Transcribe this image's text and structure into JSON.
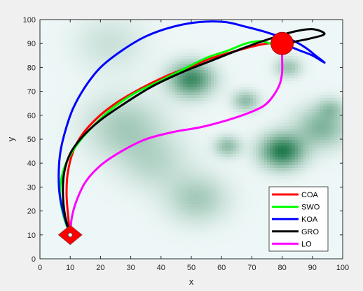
{
  "chart_data": {
    "type": "line",
    "title": "",
    "xlabel": "x",
    "ylabel": "y",
    "xlim": [
      0,
      100
    ],
    "ylim": [
      0,
      100
    ],
    "xticks": [
      "0",
      "10",
      "20",
      "30",
      "40",
      "50",
      "60",
      "70",
      "80",
      "90",
      "100"
    ],
    "yticks": [
      "0",
      "10",
      "20",
      "30",
      "40",
      "50",
      "60",
      "70",
      "80",
      "90",
      "100"
    ],
    "legend_position": "lower-right",
    "grid": false,
    "background": {
      "description_colors": [
        "#eef7f7",
        "#006633"
      ],
      "peaks": [
        {
          "x": 50,
          "y": 75,
          "strength": 0.75,
          "spread": 5
        },
        {
          "x": 80,
          "y": 45,
          "strength": 0.85,
          "spread": 5
        },
        {
          "x": 68,
          "y": 66,
          "strength": 0.4,
          "spread": 3
        },
        {
          "x": 62,
          "y": 47,
          "strength": 0.4,
          "spread": 3
        },
        {
          "x": 82,
          "y": 80,
          "strength": 0.35,
          "spread": 3
        },
        {
          "x": 93,
          "y": 55,
          "strength": 0.45,
          "spread": 6
        },
        {
          "x": 96,
          "y": 63,
          "strength": 0.25,
          "spread": 3
        },
        {
          "x": 28,
          "y": 55,
          "strength": 0.3,
          "spread": 9
        },
        {
          "x": 52,
          "y": 25,
          "strength": 0.3,
          "spread": 7
        },
        {
          "x": 23,
          "y": 90,
          "strength": 0.15,
          "spread": 8
        },
        {
          "x": 38,
          "y": 40,
          "strength": 0.2,
          "spread": 8
        }
      ]
    },
    "start": {
      "x": 10,
      "y": 10,
      "color": "#ff0000"
    },
    "goal": {
      "x": 80,
      "y": 90,
      "color": "#ff0000"
    },
    "series": [
      {
        "name": "COA",
        "color": "#ff0000",
        "x": [
          10,
          9.3,
          8.8,
          9.2,
          11,
          14,
          19,
          25,
          33,
          41,
          49,
          57,
          65,
          71,
          75,
          78,
          80
        ],
        "y": [
          10,
          18,
          27,
          36,
          45,
          52,
          59,
          65,
          71,
          76,
          80,
          84,
          87,
          89,
          90,
          90,
          90
        ]
      },
      {
        "name": "SWO",
        "color": "#00ff00",
        "x": [
          10,
          8,
          6.7,
          7,
          9,
          13,
          18,
          24,
          31,
          39,
          47,
          55,
          62,
          68,
          73,
          76,
          78,
          80
        ],
        "y": [
          10,
          17,
          25,
          33,
          41,
          49,
          56,
          63,
          69,
          74,
          79,
          84,
          87,
          90,
          91,
          90,
          90,
          90
        ]
      },
      {
        "name": "KOA",
        "color": "#0000ff",
        "x": [
          10,
          8,
          6.5,
          6.2,
          6.8,
          8.5,
          11,
          15,
          20,
          27,
          35,
          44,
          53,
          61,
          68,
          74,
          79,
          84,
          88,
          91,
          94,
          90,
          86,
          82,
          80
        ],
        "y": [
          10,
          18,
          27,
          36,
          45,
          54,
          63,
          72,
          80,
          87,
          93,
          97,
          99,
          99,
          97,
          95,
          93,
          91,
          88,
          85,
          82,
          85,
          87,
          89,
          90
        ]
      },
      {
        "name": "GRO",
        "color": "#000000",
        "x": [
          10,
          8.3,
          7.6,
          8,
          10,
          14,
          20,
          28,
          37,
          47,
          57,
          67,
          76,
          84,
          90,
          94,
          89,
          85,
          82,
          80
        ],
        "y": [
          10,
          18,
          27,
          36,
          44,
          51,
          58,
          65,
          72,
          78,
          83,
          88,
          92,
          95,
          96,
          94,
          92,
          91,
          90,
          90
        ]
      },
      {
        "name": "LO",
        "color": "#ff00ff",
        "x": [
          10,
          10.5,
          12,
          15,
          20,
          27,
          35,
          44,
          53,
          62,
          69,
          74,
          77,
          79.2,
          80,
          80,
          80
        ],
        "y": [
          10,
          17,
          24,
          32,
          39,
          45,
          50,
          53,
          55,
          58,
          61,
          64,
          68,
          73,
          78,
          84,
          90
        ]
      }
    ]
  }
}
